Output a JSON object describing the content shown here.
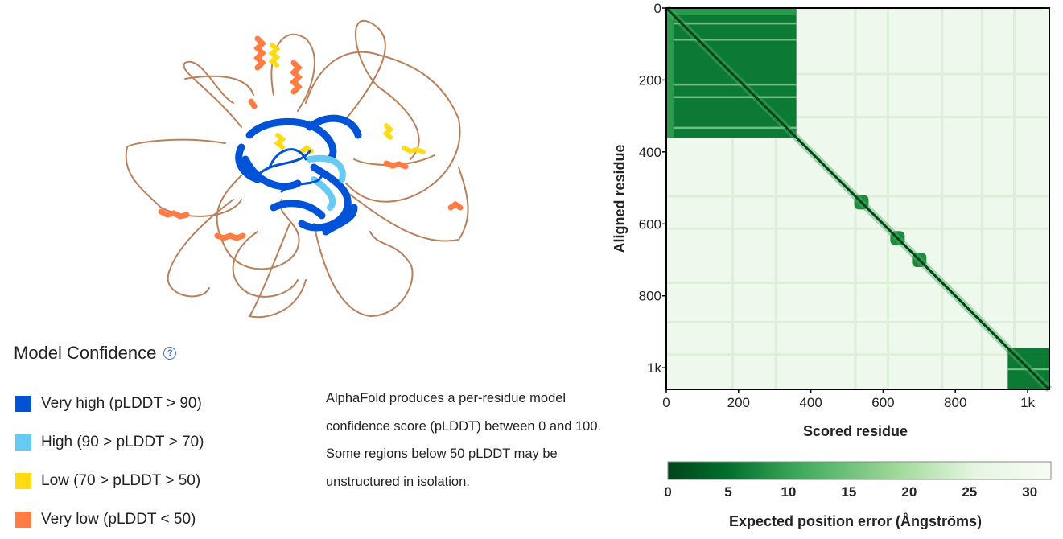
{
  "legend": {
    "title": "Model Confidence",
    "help_icon": "question-circle-icon",
    "items": [
      {
        "label": "Very high (pLDDT > 90)",
        "color": "#0053d6"
      },
      {
        "label": "High (90 > pLDDT > 70)",
        "color": "#65cbf3"
      },
      {
        "label": "Low (70 > pLDDT > 50)",
        "color": "#ffdb13"
      },
      {
        "label": "Very low (pLDDT < 50)",
        "color": "#ff7d45"
      }
    ]
  },
  "description": {
    "lines": [
      "AlphaFold produces a per-residue model",
      "confidence score (pLDDT) between 0 and 100.",
      "Some regions below 50 pLDDT may be",
      "unstructured in isolation."
    ]
  },
  "chart_data": {
    "type": "heatmap",
    "xlabel": "Scored residue",
    "ylabel": "Aligned residue",
    "x_ticks": [
      "0",
      "200",
      "400",
      "600",
      "800",
      "1k"
    ],
    "y_ticks": [
      "0",
      "200",
      "400",
      "600",
      "800",
      "1k"
    ],
    "x_range": [
      0,
      1060
    ],
    "y_range": [
      0,
      1060
    ],
    "colorbar": {
      "label": "Expected position error (Ångströms)",
      "ticks": [
        "0",
        "5",
        "10",
        "15",
        "20",
        "25",
        "30"
      ],
      "range": [
        0,
        31.75
      ],
      "color_low": "#00441b",
      "color_high": "#f7fcf5"
    },
    "low_error_blocks": [
      {
        "from": 0,
        "to": 360,
        "pae": 5
      },
      {
        "from": 945,
        "to": 1060,
        "pae": 5
      }
    ],
    "diagonal_pae": 2
  }
}
